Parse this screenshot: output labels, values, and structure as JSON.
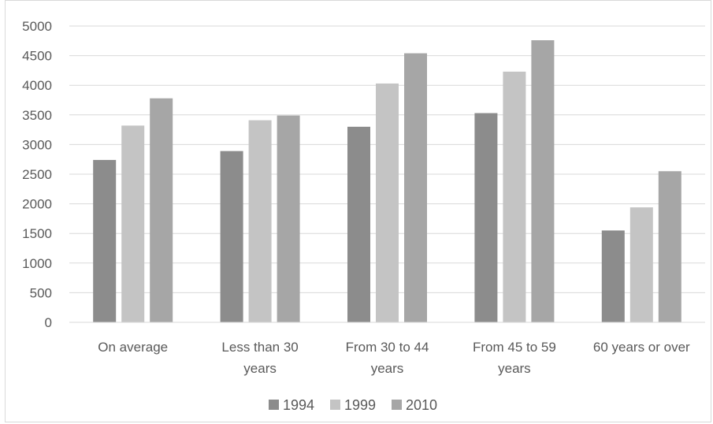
{
  "chart_data": {
    "type": "bar",
    "title": "",
    "xlabel": "",
    "ylabel": "",
    "categories": [
      [
        "On average"
      ],
      [
        "Less than 30",
        "years"
      ],
      [
        "From 30 to 44",
        "years"
      ],
      [
        "From 45 to 59",
        "years"
      ],
      [
        "60 years or over"
      ]
    ],
    "series": [
      {
        "name": "1994",
        "color": "#8c8c8c",
        "values": [
          2740,
          2890,
          3300,
          3530,
          1550
        ]
      },
      {
        "name": "1999",
        "color": "#c4c4c4",
        "values": [
          3320,
          3410,
          4030,
          4230,
          1940
        ]
      },
      {
        "name": "2010",
        "color": "#a6a6a6",
        "values": [
          3780,
          3490,
          4540,
          4760,
          2550
        ]
      }
    ],
    "ylim": [
      0,
      5000
    ],
    "yticks": [
      "0",
      "500",
      "1000",
      "1500",
      "2000",
      "2500",
      "3000",
      "3500",
      "4000",
      "4500",
      "5000"
    ],
    "grid": true,
    "legend_position": "bottom"
  }
}
